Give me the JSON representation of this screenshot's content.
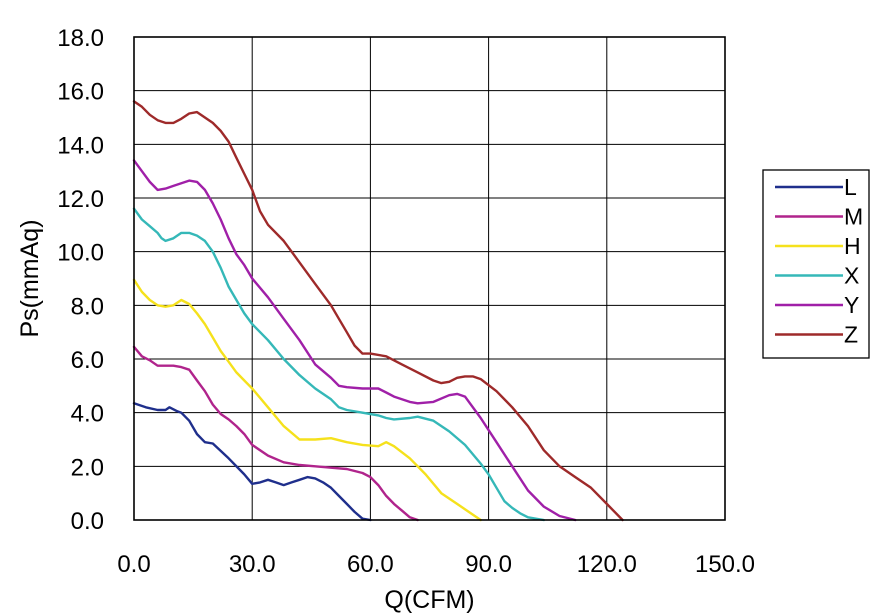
{
  "chart_data": {
    "type": "line",
    "xlabel": "Q(CFM)",
    "ylabel": "Ps(mmAq)",
    "xlim": [
      0,
      150
    ],
    "ylim": [
      0,
      18
    ],
    "xticks": [
      "0.0",
      "30.0",
      "60.0",
      "90.0",
      "120.0",
      "150.0"
    ],
    "yticks": [
      "0.0",
      "2.0",
      "4.0",
      "6.0",
      "8.0",
      "10.0",
      "12.0",
      "14.0",
      "16.0",
      "18.0"
    ],
    "grid": true,
    "legend_position": "right",
    "series": [
      {
        "name": "L",
        "color": "#1f2f8c",
        "x": [
          0,
          3,
          6,
          8,
          9,
          11,
          12,
          14,
          16,
          18,
          20,
          24,
          28,
          30,
          32,
          34,
          36,
          38,
          40,
          42,
          44,
          46,
          48,
          50,
          52,
          54,
          56,
          58,
          60
        ],
        "y": [
          4.35,
          4.2,
          4.1,
          4.1,
          4.2,
          4.05,
          4.0,
          3.7,
          3.2,
          2.9,
          2.85,
          2.3,
          1.7,
          1.35,
          1.4,
          1.5,
          1.4,
          1.3,
          1.4,
          1.5,
          1.6,
          1.55,
          1.4,
          1.2,
          0.9,
          0.6,
          0.3,
          0.05,
          0
        ]
      },
      {
        "name": "M",
        "color": "#b0248c",
        "x": [
          0,
          2,
          4,
          6,
          8,
          10,
          12,
          14,
          16,
          18,
          20,
          22,
          24,
          26,
          28,
          30,
          34,
          38,
          42,
          46,
          50,
          54,
          58,
          60,
          62,
          64,
          66,
          68,
          70,
          72
        ],
        "y": [
          6.45,
          6.1,
          5.95,
          5.75,
          5.75,
          5.75,
          5.7,
          5.6,
          5.2,
          4.8,
          4.3,
          3.95,
          3.75,
          3.5,
          3.2,
          2.8,
          2.4,
          2.15,
          2.05,
          2.0,
          1.95,
          1.9,
          1.75,
          1.6,
          1.3,
          0.9,
          0.6,
          0.35,
          0.1,
          0
        ]
      },
      {
        "name": "H",
        "color": "#f5e11c",
        "x": [
          0,
          2,
          4,
          6,
          8,
          10,
          12,
          14,
          16,
          18,
          20,
          22,
          24,
          26,
          28,
          30,
          34,
          38,
          42,
          46,
          50,
          54,
          58,
          62,
          64,
          66,
          70,
          74,
          78,
          82,
          86,
          88
        ],
        "y": [
          8.95,
          8.5,
          8.2,
          8.0,
          7.95,
          8.0,
          8.2,
          8.05,
          7.7,
          7.3,
          6.8,
          6.3,
          5.9,
          5.5,
          5.2,
          4.9,
          4.2,
          3.5,
          3.0,
          3.0,
          3.05,
          2.9,
          2.8,
          2.75,
          2.9,
          2.75,
          2.3,
          1.7,
          1.0,
          0.6,
          0.2,
          0
        ]
      },
      {
        "name": "X",
        "color": "#35b8b8",
        "x": [
          0,
          2,
          4,
          6,
          7,
          8,
          10,
          12,
          14,
          16,
          18,
          20,
          22,
          24,
          26,
          28,
          30,
          34,
          38,
          42,
          46,
          50,
          52,
          54,
          58,
          62,
          64,
          66,
          70,
          72,
          76,
          80,
          84,
          88,
          90,
          92,
          94,
          96,
          98,
          100,
          104
        ],
        "y": [
          11.6,
          11.2,
          10.95,
          10.7,
          10.5,
          10.4,
          10.5,
          10.7,
          10.7,
          10.6,
          10.4,
          10.0,
          9.4,
          8.7,
          8.2,
          7.7,
          7.3,
          6.7,
          6.0,
          5.4,
          4.9,
          4.5,
          4.2,
          4.1,
          4.0,
          3.9,
          3.8,
          3.75,
          3.8,
          3.85,
          3.7,
          3.3,
          2.8,
          2.1,
          1.7,
          1.2,
          0.7,
          0.45,
          0.25,
          0.1,
          0
        ]
      },
      {
        "name": "Y",
        "color": "#a020a8",
        "x": [
          0,
          2,
          4,
          6,
          8,
          10,
          12,
          14,
          16,
          18,
          20,
          22,
          24,
          26,
          28,
          30,
          34,
          38,
          42,
          46,
          50,
          52,
          54,
          58,
          62,
          64,
          66,
          70,
          72,
          76,
          80,
          82,
          84,
          88,
          92,
          96,
          100,
          104,
          108,
          112
        ],
        "y": [
          13.4,
          13.0,
          12.6,
          12.3,
          12.35,
          12.45,
          12.55,
          12.65,
          12.6,
          12.3,
          11.8,
          11.2,
          10.5,
          9.9,
          9.5,
          9.0,
          8.3,
          7.5,
          6.7,
          5.8,
          5.3,
          5.0,
          4.95,
          4.9,
          4.9,
          4.75,
          4.6,
          4.4,
          4.35,
          4.4,
          4.65,
          4.7,
          4.6,
          3.8,
          2.9,
          2.0,
          1.1,
          0.5,
          0.15,
          0
        ]
      },
      {
        "name": "Z",
        "color": "#9e2a2a",
        "x": [
          0,
          2,
          4,
          6,
          8,
          10,
          12,
          14,
          16,
          18,
          20,
          22,
          24,
          26,
          28,
          30,
          32,
          34,
          38,
          42,
          46,
          50,
          52,
          54,
          56,
          58,
          60,
          64,
          68,
          72,
          76,
          78,
          80,
          82,
          84,
          86,
          88,
          92,
          96,
          100,
          104,
          108,
          112,
          116,
          120,
          124
        ],
        "y": [
          15.6,
          15.4,
          15.1,
          14.9,
          14.8,
          14.8,
          14.95,
          15.15,
          15.2,
          15.0,
          14.8,
          14.5,
          14.1,
          13.5,
          12.9,
          12.3,
          11.5,
          11.0,
          10.4,
          9.6,
          8.8,
          8.0,
          7.5,
          7.0,
          6.5,
          6.2,
          6.2,
          6.1,
          5.8,
          5.5,
          5.2,
          5.1,
          5.15,
          5.3,
          5.35,
          5.35,
          5.25,
          4.8,
          4.2,
          3.5,
          2.6,
          2.0,
          1.6,
          1.2,
          0.6,
          0
        ]
      }
    ]
  }
}
